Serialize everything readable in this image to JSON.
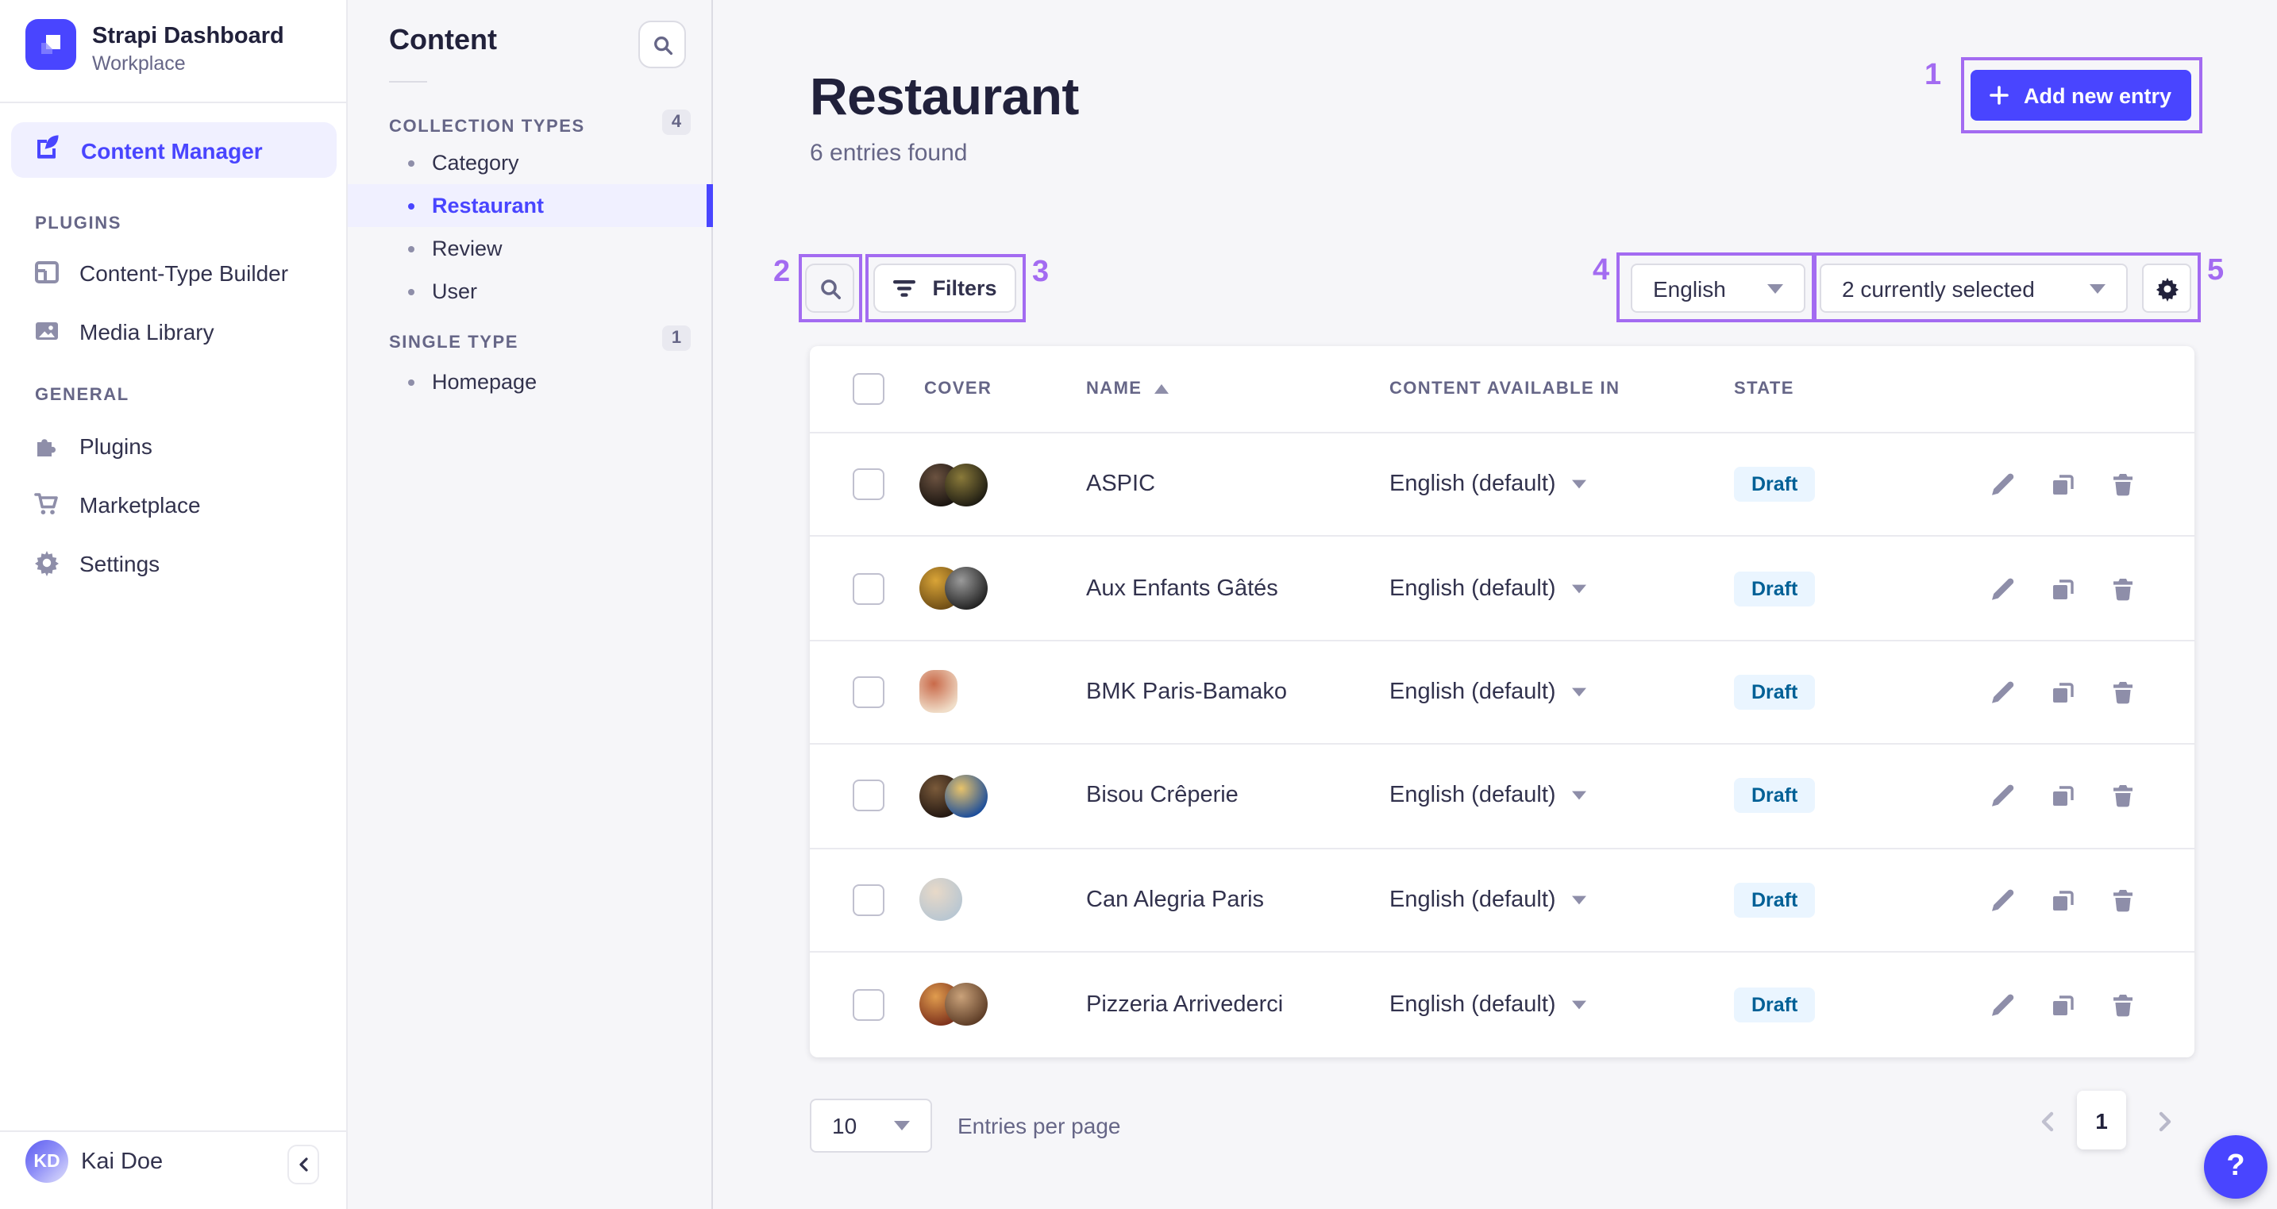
{
  "colors": {
    "primary": "#4945ff",
    "primary_light_bg": "#f0f0ff",
    "annotation": "#a36bf1",
    "draft_badge_bg": "#eaf5ff",
    "draft_badge_text": "#006096",
    "icon_gray": "#8e8ea9"
  },
  "main_nav": {
    "app_title": "Strapi Dashboard",
    "workspace": "Workplace",
    "content_manager": "Content Manager",
    "plugins_section": "PLUGINS",
    "plugins_items": {
      "ctb": "Content-Type Builder",
      "media": "Media Library"
    },
    "general_section": "GENERAL",
    "general_items": {
      "plugins": "Plugins",
      "marketplace": "Marketplace",
      "settings": "Settings"
    },
    "user": {
      "initials": "KD",
      "name": "Kai Doe"
    }
  },
  "sub_nav": {
    "title": "Content",
    "collection_types": {
      "label": "COLLECTION TYPES",
      "badge": "4",
      "items": {
        "0": "Category",
        "1": "Restaurant",
        "2": "Review",
        "3": "User"
      },
      "active_item": "Restaurant"
    },
    "single_type": {
      "label": "SINGLE TYPE",
      "badge": "1",
      "items": {
        "0": "Homepage"
      }
    }
  },
  "header": {
    "title": "Restaurant",
    "subtitle": "6 entries found",
    "add_button": "Add new entry"
  },
  "toolbar": {
    "filters_label": "Filters",
    "locale_selected": "English",
    "fields_selected": "2 currently selected"
  },
  "table": {
    "columns": {
      "cover": "COVER",
      "name": "NAME",
      "locale": "CONTENT AVAILABLE IN",
      "state": "STATE"
    },
    "sorted_by": "NAME ascending",
    "rows": [
      {
        "name": "ASPIC",
        "locale": "English (default)",
        "state": "Draft",
        "covers": [
          {
            "shape": "circle",
            "inner": "#6b5240",
            "outer": "#17120e"
          },
          {
            "shape": "circle",
            "inner": "#8a7a3a",
            "outer": "#1c1a12"
          }
        ]
      },
      {
        "name": "Aux Enfants Gâtés",
        "locale": "English (default)",
        "state": "Draft",
        "covers": [
          {
            "shape": "circle",
            "inner": "#d9a437",
            "outer": "#6b4a14"
          },
          {
            "shape": "circle",
            "inner": "#9a9a9a",
            "outer": "#1f1f1f"
          }
        ]
      },
      {
        "name": "BMK Paris-Bamako",
        "locale": "English (default)",
        "state": "Draft",
        "covers": [
          {
            "shape": "rrect",
            "inner": "#c96a4a",
            "outer": "#f0ddc8"
          }
        ]
      },
      {
        "name": "Bisou Crêperie",
        "locale": "English (default)",
        "state": "Draft",
        "covers": [
          {
            "shape": "circle",
            "inner": "#7a5a3a",
            "outer": "#201510"
          },
          {
            "shape": "circle",
            "inner": "#e8c36a",
            "outer": "#164a9c"
          }
        ]
      },
      {
        "name": "Can Alegria Paris",
        "locale": "English (default)",
        "state": "Draft",
        "covers": [
          {
            "shape": "circle",
            "inner": "#e8d9c8",
            "outer": "#b7c6d2"
          }
        ]
      },
      {
        "name": "Pizzeria Arrivederci",
        "locale": "English (default)",
        "state": "Draft",
        "covers": [
          {
            "shape": "circle",
            "inner": "#e09c4e",
            "outer": "#7a2e1a"
          },
          {
            "shape": "circle",
            "inner": "#caa27a",
            "outer": "#5a3a24"
          }
        ]
      }
    ]
  },
  "footer": {
    "page_size": "10",
    "entries_label": "Entries per page",
    "page": "1"
  },
  "help_label": "?",
  "annotations": {
    "labels": [
      "1",
      "2",
      "3",
      "4",
      "5"
    ]
  }
}
